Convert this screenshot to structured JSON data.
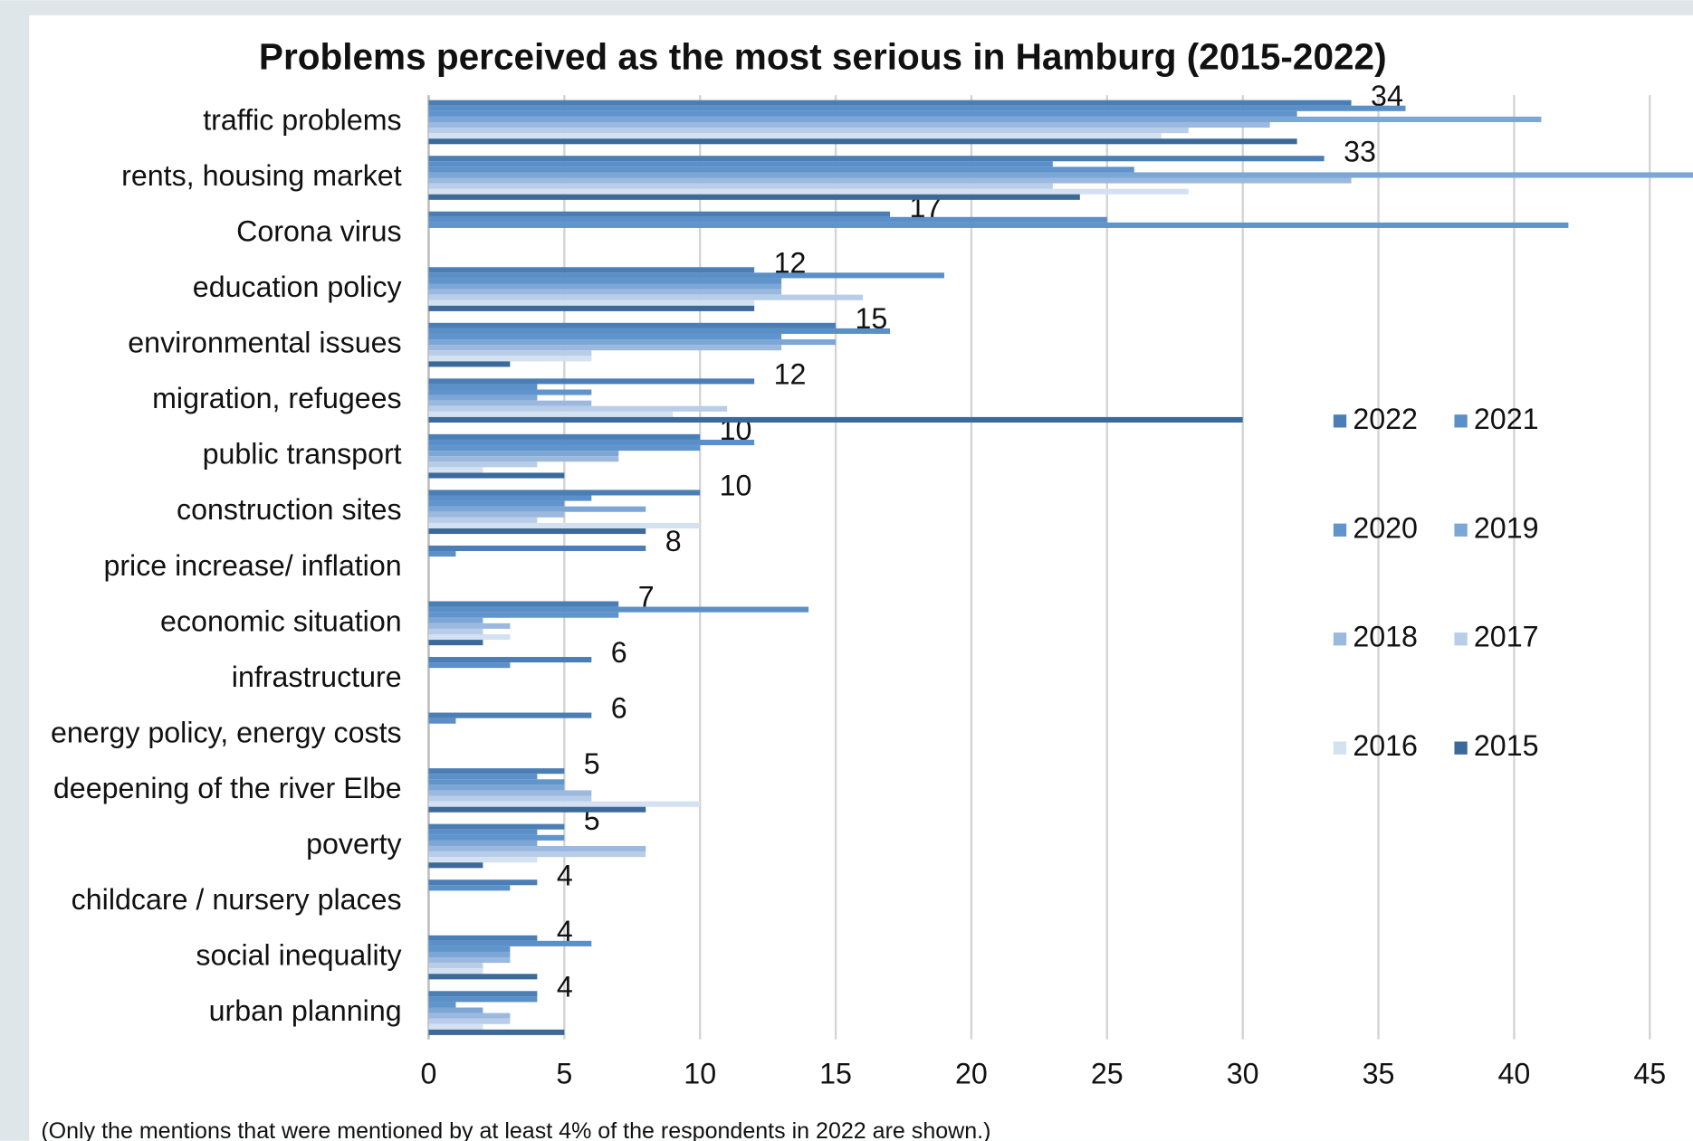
{
  "chart_data": {
    "type": "hbar",
    "title": "Problems perceived as the most serious in Hamburg (2015-2022)",
    "footnote": "(Only the mentions that were mentioned by at least 4% of the respondents in 2022 are shown.)",
    "categories": [
      "traffic problems",
      "rents, housing market",
      "Corona virus",
      "education policy",
      "environmental issues",
      "migration, refugees",
      "public transport",
      "construction sites",
      "price increase/ inflation",
      "economic situation",
      "infrastructure",
      "energy policy, energy costs",
      "deepening of the river Elbe",
      "poverty",
      "childcare / nursery places",
      "social inequality",
      "urban planning"
    ],
    "series": [
      {
        "name": "2022",
        "color": "#4a7eb5",
        "values": [
          34,
          33,
          17,
          12,
          15,
          12,
          10,
          10,
          8,
          7,
          6,
          6,
          5,
          5,
          4,
          4,
          4
        ]
      },
      {
        "name": "2021",
        "color": "#5b8fc7",
        "values": [
          36,
          23,
          25,
          19,
          17,
          4,
          12,
          6,
          1,
          14,
          3,
          1,
          4,
          4,
          3,
          6,
          4
        ]
      },
      {
        "name": "2020",
        "color": "#5f94cc",
        "values": [
          32,
          26,
          42,
          13,
          13,
          6,
          10,
          5,
          null,
          7,
          null,
          null,
          5,
          5,
          null,
          3,
          1
        ]
      },
      {
        "name": "2019",
        "color": "#7ba6d6",
        "values": [
          41,
          47,
          null,
          13,
          15,
          4,
          7,
          8,
          null,
          2,
          null,
          null,
          5,
          4,
          null,
          3,
          2
        ]
      },
      {
        "name": "2018",
        "color": "#9bb9df",
        "values": [
          31,
          34,
          null,
          13,
          13,
          6,
          7,
          5,
          null,
          3,
          null,
          null,
          6,
          8,
          null,
          3,
          3
        ]
      },
      {
        "name": "2017",
        "color": "#b7cde8",
        "values": [
          28,
          23,
          null,
          16,
          6,
          11,
          4,
          4,
          null,
          2,
          null,
          null,
          6,
          8,
          null,
          2,
          3
        ]
      },
      {
        "name": "2016",
        "color": "#d3e1f1",
        "values": [
          27,
          28,
          null,
          12,
          6,
          9,
          2,
          10,
          null,
          3,
          null,
          null,
          10,
          4,
          null,
          2,
          2
        ]
      },
      {
        "name": "2015",
        "color": "#3b6a9a",
        "values": [
          32,
          24,
          null,
          12,
          3,
          30,
          5,
          8,
          null,
          2,
          null,
          null,
          8,
          2,
          null,
          4,
          5
        ]
      }
    ],
    "xlim": [
      0,
      45
    ],
    "xticks": [
      0,
      5,
      10,
      15,
      20,
      25,
      30,
      35,
      40,
      45
    ],
    "grid": true,
    "legend": "right"
  }
}
